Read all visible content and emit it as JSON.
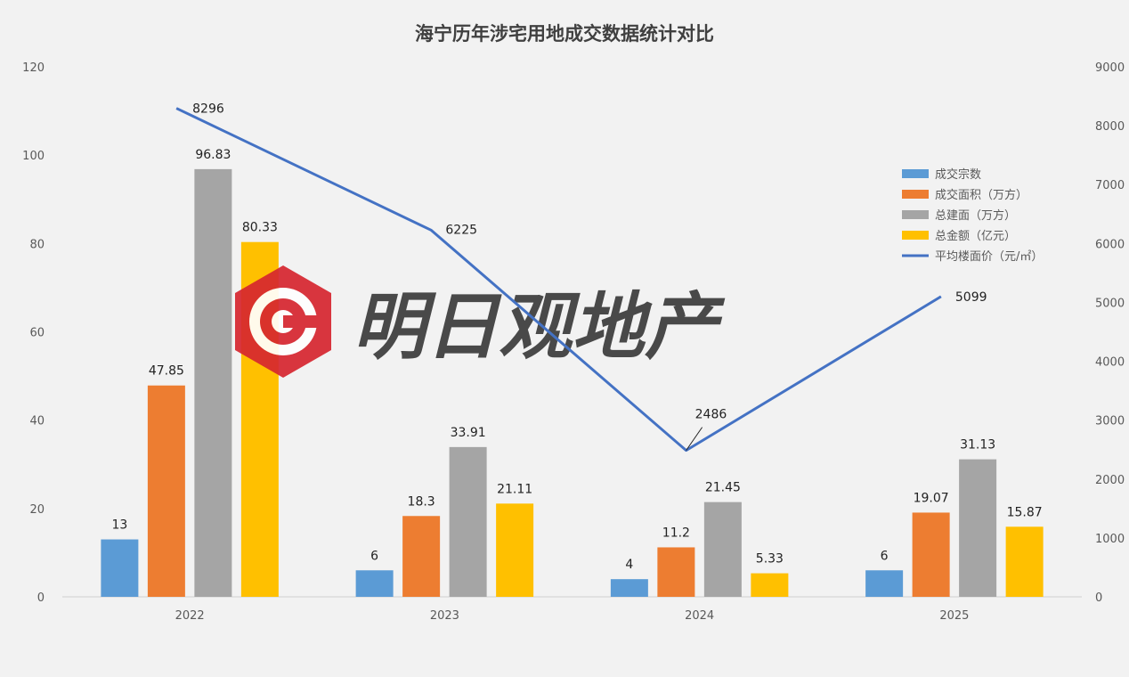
{
  "chart_data": {
    "type": "bar",
    "title": "海宁历年涉宅用地成交数据统计对比",
    "categories": [
      "2022",
      "2023",
      "2024",
      "2025"
    ],
    "series": [
      {
        "name": "成交宗数",
        "axis": "left",
        "color": "#5b9bd5",
        "values": [
          13,
          6,
          4,
          6
        ],
        "labels": [
          "13",
          "6",
          "4",
          "6"
        ]
      },
      {
        "name": "成交面积（万方）",
        "axis": "left",
        "color": "#ed7d31",
        "values": [
          47.85,
          18.3,
          11.2,
          19.07
        ],
        "labels": [
          "47.85",
          "18.3",
          "11.2",
          "19.07"
        ]
      },
      {
        "name": "总建面（万方）",
        "axis": "left",
        "color": "#a5a5a5",
        "values": [
          96.83,
          33.91,
          21.45,
          31.13
        ],
        "labels": [
          "96.83",
          "33.91",
          "21.45",
          "31.13"
        ]
      },
      {
        "name": "总金额（亿元）",
        "axis": "left",
        "color": "#ffc000",
        "values": [
          80.33,
          21.11,
          5.33,
          15.87
        ],
        "labels": [
          "80.33",
          "21.11",
          "5.33",
          "15.87"
        ]
      }
    ],
    "line_series": {
      "name": "平均楼面价（元/㎡）",
      "type": "line",
      "axis": "right",
      "color": "#4472c4",
      "values": [
        8296,
        6225,
        2486,
        5099
      ],
      "labels": [
        "8296",
        "6225",
        "2486",
        "5099"
      ]
    },
    "y_left": {
      "min": 0,
      "max": 120,
      "ticks": [
        "0",
        "20",
        "40",
        "60",
        "80",
        "100",
        "120"
      ]
    },
    "y_right": {
      "min": 0,
      "max": 9000,
      "ticks": [
        "0",
        "1000",
        "2000",
        "3000",
        "4000",
        "5000",
        "6000",
        "7000",
        "8000",
        "9000"
      ]
    },
    "grid": false,
    "legend_position": "right"
  },
  "watermark": {
    "text": "明日观地产",
    "logo_colors": [
      "#d6262f",
      "#ffffff"
    ]
  }
}
